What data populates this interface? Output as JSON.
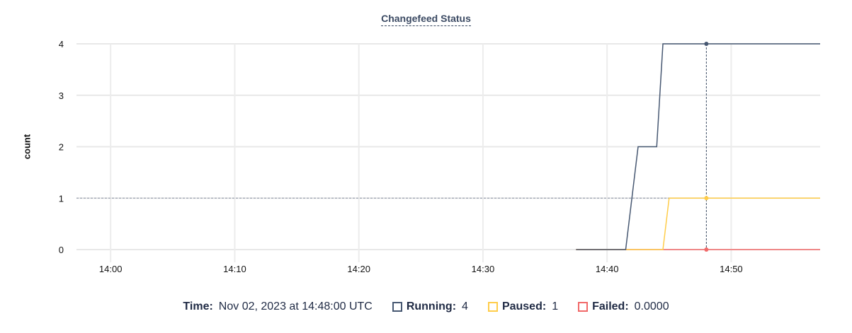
{
  "chart_data": {
    "type": "line",
    "title": "Changefeed Status",
    "ylabel": "count",
    "xlabel": "",
    "xlim": [
      "13:57:15",
      "14:57:10"
    ],
    "ylim": [
      0,
      4
    ],
    "x_ticks": [
      "14:00",
      "14:10",
      "14:20",
      "14:30",
      "14:40",
      "14:50"
    ],
    "y_ticks": [
      0,
      1,
      2,
      3,
      4
    ],
    "grid": true,
    "series": [
      {
        "name": "Running",
        "color": "#475872",
        "points": [
          [
            "14:37:30",
            0
          ],
          [
            "14:41:30",
            0
          ],
          [
            "14:42:30",
            2
          ],
          [
            "14:44:00",
            2
          ],
          [
            "14:44:30",
            4
          ],
          [
            "14:57:10",
            4
          ]
        ]
      },
      {
        "name": "Paused",
        "color": "#ffcd4a",
        "points": [
          [
            "14:37:30",
            0
          ],
          [
            "14:44:30",
            0
          ],
          [
            "14:45:00",
            1
          ],
          [
            "14:57:10",
            1
          ]
        ]
      },
      {
        "name": "Failed",
        "color": "#f16969",
        "points": [
          [
            "14:37:30",
            0
          ],
          [
            "14:57:10",
            0
          ]
        ]
      }
    ],
    "hover": {
      "time": "14:48:00",
      "value_guide": 1
    }
  },
  "legend": {
    "time_label": "Time:",
    "time_value": "Nov 02, 2023 at 14:48:00 UTC",
    "items": [
      {
        "label": "Running:",
        "value": "4",
        "color": "#475872"
      },
      {
        "label": "Paused:",
        "value": "1",
        "color": "#ffcd4a"
      },
      {
        "label": "Failed:",
        "value": "0.0000",
        "color": "#f16969"
      }
    ]
  }
}
